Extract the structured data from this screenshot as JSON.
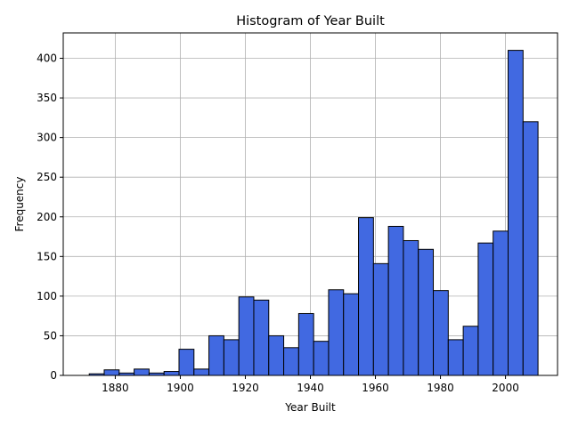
{
  "chart_data": {
    "type": "bar",
    "title": "Histogram of Year Built",
    "xlabel": "Year Built",
    "ylabel": "Frequency",
    "xlim": [
      1864,
      2016
    ],
    "ylim": [
      0,
      432
    ],
    "xticks": [
      1880,
      1900,
      1920,
      1940,
      1960,
      1980,
      2000
    ],
    "yticks": [
      0,
      50,
      100,
      150,
      200,
      250,
      300,
      350,
      400
    ],
    "grid": true,
    "bar_color": "#4169e1",
    "edge_color": "#000000",
    "bins": {
      "start": 1872,
      "width": 4.6,
      "counts": [
        2,
        7,
        3,
        8,
        3,
        5,
        33,
        8,
        50,
        45,
        99,
        95,
        50,
        35,
        78,
        43,
        108,
        103,
        199,
        141,
        188,
        170,
        159,
        107,
        45,
        62,
        167,
        182,
        410,
        320
      ]
    }
  }
}
